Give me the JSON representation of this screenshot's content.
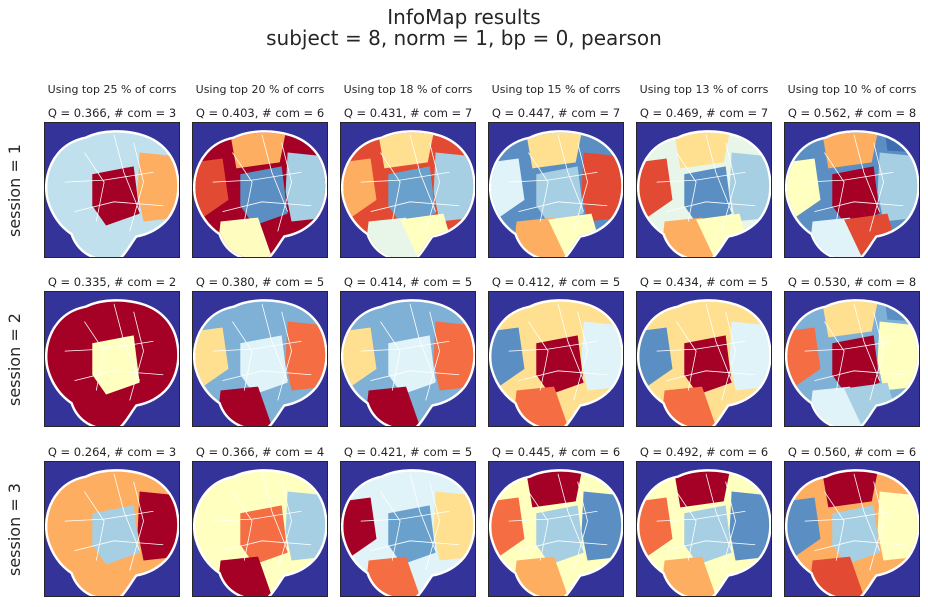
{
  "title": "InfoMap results",
  "subtitle": "subject = 8,   norm = 1,   bp = 0,   pearson",
  "chart_data": {
    "type": "heatmap",
    "columns": [
      "Using top 25 % of corrs",
      "Using top 20 % of corrs",
      "Using top 18 % of corrs",
      "Using top 15 % of corrs",
      "Using top 13 % of corrs",
      "Using top 10 % of corrs"
    ],
    "rows": [
      {
        "label": "session = 1",
        "panels": [
          {
            "label": "Q = 0.366,  # com = 3",
            "Q": 0.366,
            "communities": 3,
            "colors": [
              "#bfe0ec",
              "#a50026",
              "#fdae61"
            ]
          },
          {
            "label": "Q = 0.403,  # com = 6",
            "Q": 0.403,
            "communities": 6,
            "colors": [
              "#a50026",
              "#5b8fc3",
              "#a6cfe3",
              "#fffcbf",
              "#e34a33",
              "#fdae61"
            ]
          },
          {
            "label": "Q = 0.431,  # com = 7",
            "Q": 0.431,
            "communities": 7,
            "colors": [
              "#e34a33",
              "#6aa1cc",
              "#a6cfe3",
              "#e8f5e9",
              "#fdae61",
              "#fee090",
              "#ffffbf"
            ]
          },
          {
            "label": "Q = 0.447,  # com = 7",
            "Q": 0.447,
            "communities": 7,
            "colors": [
              "#5b8fc3",
              "#a6cfe3",
              "#e34a33",
              "#fdae61",
              "#e0f3f8",
              "#fee090",
              "#ffffbf"
            ]
          },
          {
            "label": "Q = 0.469,  # com = 7",
            "Q": 0.469,
            "communities": 7,
            "colors": [
              "#e8f5e9",
              "#5b8fc3",
              "#a6cfe3",
              "#fdae61",
              "#e34a33",
              "#fee090",
              "#ffffbf"
            ]
          },
          {
            "label": "Q = 0.562,  # com = 8",
            "Q": 0.562,
            "communities": 8,
            "colors": [
              "#5b8fc3",
              "#a50026",
              "#a6cfe3",
              "#e0f3f8",
              "#ffffbf",
              "#fdae61",
              "#e34a33",
              "#3f6eb0"
            ]
          }
        ]
      },
      {
        "label": "session = 2",
        "panels": [
          {
            "label": "Q = 0.335,  # com = 2",
            "Q": 0.335,
            "communities": 2,
            "colors": [
              "#a50026",
              "#ffffc0"
            ]
          },
          {
            "label": "Q = 0.380,  # com = 5",
            "Q": 0.38,
            "communities": 5,
            "colors": [
              "#7fb0d6",
              "#e0f3f8",
              "#f46d43",
              "#a50026",
              "#fee090"
            ]
          },
          {
            "label": "Q = 0.414,  # com = 5",
            "Q": 0.414,
            "communities": 5,
            "colors": [
              "#7fb0d6",
              "#e0f3f8",
              "#f46d43",
              "#a50026",
              "#fee090"
            ]
          },
          {
            "label": "Q = 0.412,  # com = 5",
            "Q": 0.412,
            "communities": 5,
            "colors": [
              "#fee090",
              "#a50026",
              "#e0f3f8",
              "#f46d43",
              "#5b8fc3"
            ]
          },
          {
            "label": "Q = 0.434,  # com = 5",
            "Q": 0.434,
            "communities": 5,
            "colors": [
              "#fee090",
              "#a50026",
              "#e0f3f8",
              "#f46d43",
              "#5b8fc3"
            ]
          },
          {
            "label": "Q = 0.530,  # com = 8",
            "Q": 0.53,
            "communities": 8,
            "colors": [
              "#7fb0d6",
              "#a50026",
              "#ffffbf",
              "#e0f3f8",
              "#f46d43",
              "#fee090",
              "#a6cfe3",
              "#5b8fc3"
            ]
          }
        ]
      },
      {
        "label": "session = 3",
        "panels": [
          {
            "label": "Q = 0.264,  # com = 3",
            "Q": 0.264,
            "communities": 3,
            "colors": [
              "#fdae61",
              "#a6cfe3",
              "#a50026"
            ]
          },
          {
            "label": "Q = 0.366,  # com = 4",
            "Q": 0.366,
            "communities": 4,
            "colors": [
              "#ffffbf",
              "#f46d43",
              "#a6cfe3",
              "#a50026"
            ]
          },
          {
            "label": "Q = 0.421,  # com = 5",
            "Q": 0.421,
            "communities": 5,
            "colors": [
              "#e0f3f8",
              "#6aa1cc",
              "#fee090",
              "#f46d43",
              "#a50026"
            ]
          },
          {
            "label": "Q = 0.445,  # com = 6",
            "Q": 0.445,
            "communities": 6,
            "colors": [
              "#ffffbf",
              "#a6cfe3",
              "#5b8fc3",
              "#fdae61",
              "#f46d43",
              "#a50026"
            ]
          },
          {
            "label": "Q = 0.492,  # com = 6",
            "Q": 0.492,
            "communities": 6,
            "colors": [
              "#ffffbf",
              "#a6cfe3",
              "#5b8fc3",
              "#fdae61",
              "#f46d43",
              "#a50026"
            ]
          },
          {
            "label": "Q = 0.560,  # com = 6",
            "Q": 0.56,
            "communities": 6,
            "colors": [
              "#fdae61",
              "#a6cfe3",
              "#ffffbf",
              "#e34a33",
              "#5b8fc3",
              "#a50026"
            ]
          }
        ]
      }
    ],
    "background_color": "#333399"
  }
}
